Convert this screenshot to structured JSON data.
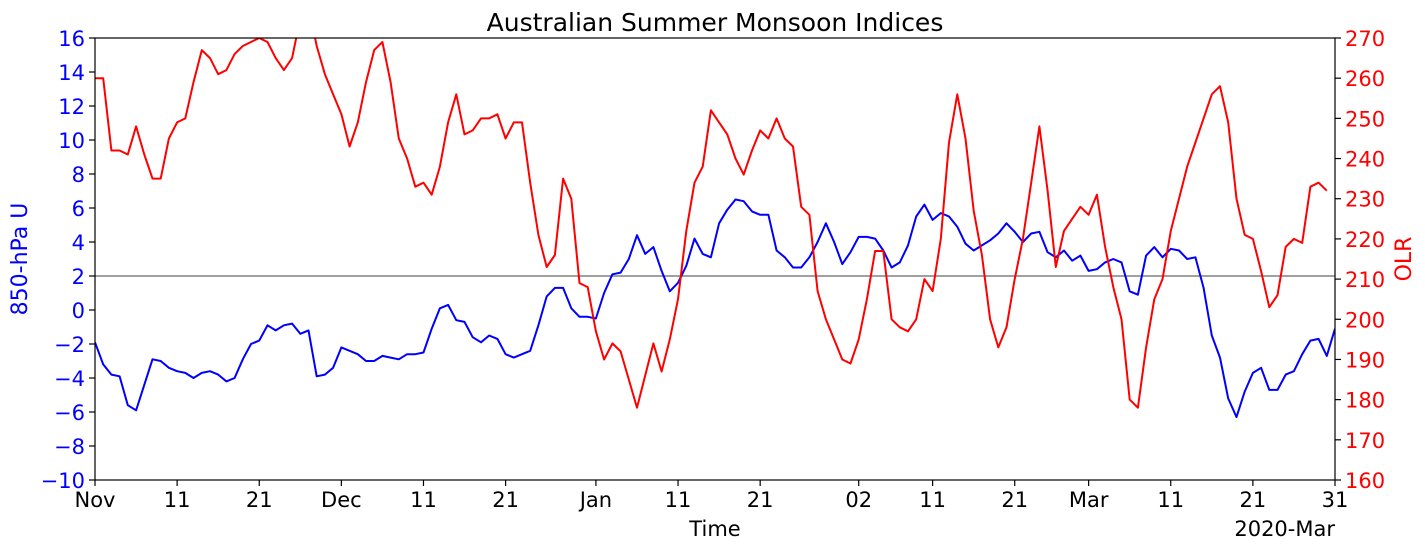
{
  "chart_data": {
    "type": "line",
    "title": "Australian Summer Monsoon Indices",
    "xlabel": "Time",
    "x_corner_label": "2020-Mar",
    "x_range": [
      "2019-11-01",
      "2020-03-31"
    ],
    "x_ticks": [
      {
        "date": "2019-11-01",
        "label": "Nov"
      },
      {
        "date": "2019-11-11",
        "label": "11"
      },
      {
        "date": "2019-11-21",
        "label": "21"
      },
      {
        "date": "2019-12-01",
        "label": "Dec"
      },
      {
        "date": "2019-12-11",
        "label": "11"
      },
      {
        "date": "2019-12-21",
        "label": "21"
      },
      {
        "date": "2020-01-01",
        "label": "Jan"
      },
      {
        "date": "2020-01-11",
        "label": "11"
      },
      {
        "date": "2020-01-21",
        "label": "21"
      },
      {
        "date": "2020-02-02",
        "label": "02"
      },
      {
        "date": "2020-02-11",
        "label": "11"
      },
      {
        "date": "2020-02-21",
        "label": "21"
      },
      {
        "date": "2020-03-01",
        "label": "Mar"
      },
      {
        "date": "2020-03-11",
        "label": "11"
      },
      {
        "date": "2020-03-21",
        "label": "21"
      },
      {
        "date": "2020-03-31",
        "label": "31"
      }
    ],
    "y_left": {
      "label": "850-hPa U",
      "range": [
        -10,
        16
      ],
      "ticks": [
        -10,
        -8,
        -6,
        -4,
        -2,
        0,
        2,
        4,
        6,
        8,
        10,
        12,
        14,
        16
      ],
      "color": "#0000ff"
    },
    "y_right": {
      "label": "OLR",
      "range": [
        160,
        270
      ],
      "ticks": [
        160,
        170,
        180,
        190,
        200,
        210,
        220,
        230,
        240,
        250,
        260,
        270
      ],
      "color": "#ff0000"
    },
    "reference_line": {
      "axis": "left",
      "value": 2,
      "color": "#808080"
    },
    "grid": false,
    "start_date": "2019-11-01",
    "series": [
      {
        "axis": "left",
        "color": "#0000ff",
        "values": [
          -1.9,
          -3.2,
          -3.8,
          -3.9,
          -5.6,
          -5.9,
          -4.4,
          -2.9,
          -3.0,
          -3.4,
          -3.6,
          -3.7,
          -4.0,
          -3.7,
          -3.6,
          -3.8,
          -4.2,
          -4.0,
          -2.9,
          -2.0,
          -1.8,
          -0.9,
          -1.2,
          -0.9,
          -0.8,
          -1.4,
          -1.2,
          -3.9,
          -3.8,
          -3.4,
          -2.2,
          -2.4,
          -2.6,
          -3.0,
          -3.0,
          -2.7,
          -2.8,
          -2.9,
          -2.6,
          -2.6,
          -2.5,
          -1.1,
          0.1,
          0.3,
          -0.6,
          -0.7,
          -1.6,
          -1.9,
          -1.5,
          -1.7,
          -2.6,
          -2.8,
          -2.6,
          -2.4,
          -0.9,
          0.8,
          1.3,
          1.3,
          0.1,
          -0.4,
          -0.4,
          -0.5,
          1.0,
          2.1,
          2.2,
          3.0,
          4.4,
          3.3,
          3.7,
          2.3,
          1.1,
          1.6,
          2.6,
          4.2,
          3.3,
          3.1,
          5.1,
          5.9,
          6.5,
          6.4,
          5.8,
          5.6,
          5.6,
          3.5,
          3.1,
          2.5,
          2.5,
          3.1,
          4.0,
          5.1,
          4.0,
          2.7,
          3.4,
          4.3,
          4.3,
          4.2,
          3.5,
          2.5,
          2.8,
          3.8,
          5.5,
          6.2,
          5.3,
          5.7,
          5.5,
          4.9,
          3.9,
          3.5,
          3.8,
          4.1,
          4.5,
          5.1,
          4.6,
          4.0,
          4.5,
          4.6,
          3.4,
          3.1,
          3.5,
          2.9,
          3.2,
          2.3,
          2.4,
          2.8,
          3.0,
          2.8,
          1.1,
          0.9,
          3.2,
          3.7,
          3.1,
          3.6,
          3.5,
          3.0,
          3.1,
          1.3,
          -1.5,
          -2.8,
          -5.2,
          -6.3,
          -4.8,
          -3.7,
          -3.4,
          -4.7,
          -4.7,
          -3.8,
          -3.6,
          -2.6,
          -1.8,
          -1.7,
          -2.7,
          -1.1
        ]
      },
      {
        "axis": "right",
        "color": "#ff0000",
        "values": [
          260,
          260,
          242,
          242,
          241,
          248,
          241,
          235,
          235,
          245,
          249,
          250,
          259,
          267,
          265,
          261,
          262,
          266,
          268,
          269,
          270,
          269,
          265,
          262,
          265,
          275,
          278,
          268,
          261,
          256,
          251,
          243,
          249,
          259,
          267,
          269,
          259,
          245,
          240,
          233,
          234,
          231,
          238,
          249,
          256,
          246,
          247,
          250,
          250,
          251,
          245,
          249,
          249,
          234,
          221,
          213,
          216,
          235,
          230,
          209,
          208,
          197,
          190,
          194,
          192,
          185,
          178,
          186,
          194,
          187,
          195,
          205,
          222,
          234,
          238,
          252,
          249,
          246,
          240,
          236,
          242,
          247,
          245,
          250,
          245,
          243,
          228,
          226,
          207,
          200,
          195,
          190,
          189,
          195,
          205,
          217,
          217,
          200,
          198,
          197,
          200,
          210,
          207,
          220,
          244,
          256,
          245,
          227,
          216,
          200,
          193,
          198,
          210,
          220,
          234,
          248,
          232,
          213,
          222,
          225,
          228,
          226,
          231,
          218,
          208,
          200,
          180,
          178,
          193,
          205,
          210,
          222,
          230,
          238,
          244,
          250,
          256,
          258,
          249,
          230,
          221,
          220,
          212,
          203,
          206,
          218,
          220,
          219,
          233,
          234,
          232
        ]
      }
    ]
  }
}
